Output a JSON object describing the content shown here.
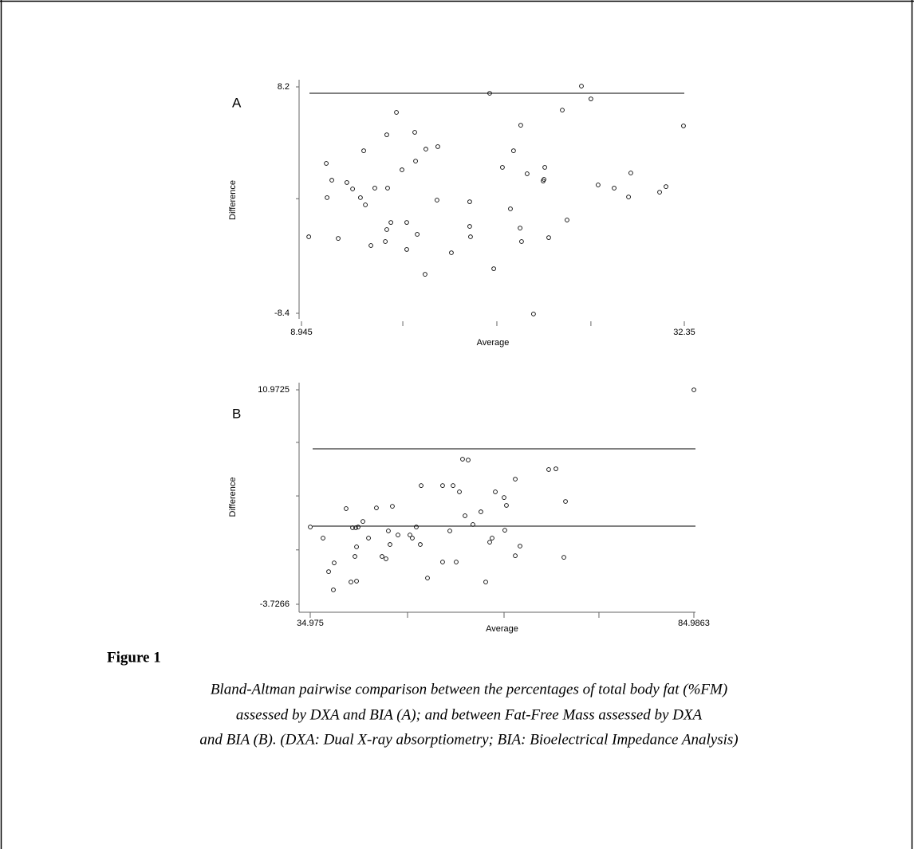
{
  "chart_data": [
    {
      "type": "scatter",
      "panel_label": "A",
      "xlabel": "Average",
      "ylabel": "Difference",
      "xlim": [
        8.945,
        32.35
      ],
      "ylim": [
        -8.4,
        8.2
      ],
      "xticks": [
        8.945,
        {
          "value": 15.14,
          "label": null
        },
        {
          "value": 20.89,
          "label": null
        },
        {
          "value": 26.64,
          "label": null
        },
        32.35
      ],
      "yticks": [
        -8.4,
        {
          "value": 0,
          "label": null
        },
        8.2
      ],
      "reference_lines": [
        7.73
      ],
      "color": "#000000",
      "x": [
        9.39,
        10.46,
        10.51,
        10.8,
        11.19,
        11.72,
        12.07,
        12.55,
        12.75,
        12.85,
        13.19,
        13.43,
        14.07,
        14.16,
        14.16,
        14.21,
        14.41,
        14.75,
        15.09,
        15.38,
        15.38,
        15.87,
        15.92,
        16.02,
        16.5,
        16.55,
        17.28,
        17.23,
        18.11,
        19.23,
        19.23,
        19.28,
        20.45,
        20.7,
        21.23,
        21.72,
        21.91,
        22.31,
        22.35,
        22.4,
        22.74,
        23.13,
        23.72,
        23.82,
        23.77,
        24.06,
        24.89,
        25.18,
        26.06,
        26.64,
        27.08,
        28.06,
        28.94,
        29.08,
        30.84,
        31.23,
        32.3
      ],
      "values": [
        -2.79,
        2.59,
        0.08,
        1.36,
        -2.91,
        1.19,
        0.72,
        0.08,
        3.52,
        -0.45,
        -3.43,
        0.78,
        -3.14,
        4.69,
        -2.26,
        0.78,
        -1.74,
        6.33,
        2.12,
        -1.74,
        -3.72,
        4.87,
        2.76,
        -2.61,
        -5.54,
        3.64,
        3.82,
        -0.1,
        -3.96,
        -0.22,
        -2.03,
        -2.79,
        7.73,
        -5.13,
        2.3,
        -0.74,
        3.52,
        -2.15,
        5.39,
        -3.14,
        1.83,
        -8.45,
        1.3,
        2.3,
        1.42,
        -2.85,
        6.5,
        -1.56,
        8.26,
        7.32,
        1.01,
        0.78,
        0.13,
        1.89,
        0.48,
        0.89,
        5.34
      ]
    },
    {
      "type": "scatter",
      "panel_label": "B",
      "xlabel": "Average",
      "ylabel": "Difference",
      "xlim": [
        34.975,
        84.9863
      ],
      "ylim": [
        -3.7266,
        10.9725
      ],
      "xticks": [
        34.975,
        {
          "value": 47.66,
          "label": null
        },
        {
          "value": 60.24,
          "label": null
        },
        {
          "value": 72.61,
          "label": null
        },
        84.9863
      ],
      "yticks": [
        -3.7266,
        {
          "value": 0,
          "label": null
        },
        {
          "value": 3.7,
          "label": null
        },
        {
          "value": 7.37,
          "label": null
        },
        10.9725
      ],
      "reference_lines": [
        6.93,
        1.63
      ],
      "color": "#000000",
      "x": [
        34.98,
        36.64,
        37.37,
        38.09,
        37.99,
        39.65,
        40.28,
        40.49,
        40.8,
        40.9,
        41.01,
        41.01,
        41.21,
        41.84,
        42.57,
        43.6,
        44.33,
        44.85,
        45.16,
        45.37,
        45.68,
        46.41,
        47.97,
        48.28,
        48.8,
        49.32,
        49.43,
        50.26,
        52.23,
        52.23,
        53.17,
        53.59,
        54.0,
        54.42,
        54.83,
        55.56,
        55.15,
        56.18,
        57.22,
        57.85,
        58.37,
        58.68,
        59.1,
        60.24,
        60.55,
        60.34,
        61.7,
        61.7,
        62.32,
        66.06,
        67.0,
        68.04,
        68.25,
        84.99
      ],
      "values": [
        1.57,
        0.81,
        -1.49,
        -0.89,
        -2.74,
        2.83,
        -2.2,
        1.52,
        -0.45,
        1.52,
        0.21,
        -2.14,
        1.57,
        1.95,
        0.81,
        2.88,
        -0.45,
        -0.61,
        1.3,
        0.37,
        2.99,
        1.02,
        1.02,
        0.81,
        1.57,
        0.37,
        4.41,
        -1.93,
        4.41,
        -0.83,
        1.3,
        4.41,
        -0.83,
        3.98,
        6.22,
        6.16,
        2.34,
        1.74,
        2.61,
        -2.2,
        0.53,
        0.81,
        3.98,
        3.59,
        3.05,
        1.35,
        -0.4,
        4.85,
        0.26,
        5.51,
        5.56,
        -0.51,
        3.32,
        10.97
      ]
    }
  ],
  "figure": {
    "label": "Figure 1",
    "caption": [
      "Bland-Altman pairwise comparison between the percentages of total body fat (%FM)",
      "assessed by DXA and BIA (A); and between Fat-Free Mass assessed by DXA",
      "and BIA (B).  (DXA: Dual X-ray absorptiometry; BIA: Bioelectrical Impedance Analysis)"
    ]
  }
}
